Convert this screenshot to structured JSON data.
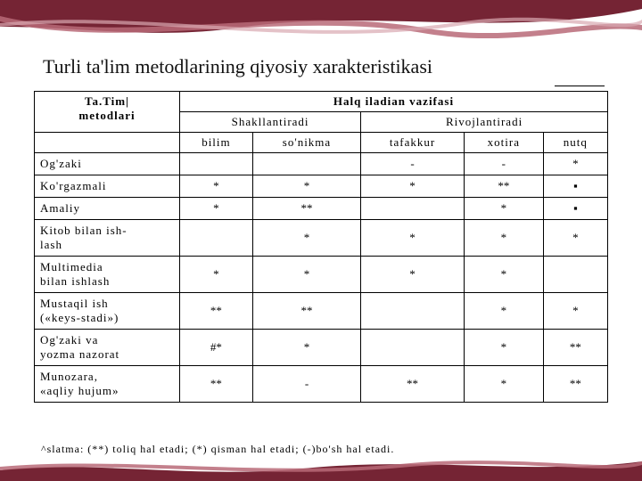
{
  "theme": {
    "ribbon_main": "#752434",
    "ribbon_light": "#b86a78",
    "ribbon_highlight": "#d9a8b0",
    "background": "#ffffff",
    "text": "#000000"
  },
  "title": "Turli ta'lim metodlarining qiyosiy xarakteristikasi",
  "table": {
    "col0_header1": "Ta.Tim|",
    "col0_header2": "metodlari",
    "top_header": "Halq iladian vazifasi",
    "group1": "Shakllantiradi",
    "group2": "Rivojlantiradi",
    "sub1": "bilim",
    "sub2": "so'nikma",
    "sub3": "tafakkur",
    "sub4": "xotira",
    "sub5": "nutq",
    "rows": [
      {
        "label": "Og'zaki",
        "c": [
          "",
          "",
          "-",
          "-",
          "*"
        ]
      },
      {
        "label": "Ko'rgazmali",
        "c": [
          "*",
          "*",
          "*",
          "**",
          "▪"
        ]
      },
      {
        "label": "Amaliy",
        "c": [
          "*",
          "**",
          "",
          "*",
          "▪"
        ]
      },
      {
        "label": "Kitob bilan ish-\nlash",
        "c": [
          "",
          "*",
          "*",
          "*",
          "*"
        ]
      },
      {
        "label": "Multimedia\nbilan ishlash",
        "c": [
          "*",
          "*",
          "*",
          "*",
          ""
        ]
      },
      {
        "label": "Mustaqil      ish\n(«keys-stadi»)",
        "c": [
          "**",
          "**",
          "",
          "*",
          "*"
        ]
      },
      {
        "label": "Og'zaki      va\nyozma nazorat",
        "c": [
          "#*",
          "*",
          "",
          "*",
          "**"
        ]
      },
      {
        "label": "Munozara,\n«aqliy hujum»",
        "c": [
          "**",
          "-",
          "**",
          "*",
          "**"
        ]
      }
    ]
  },
  "footnote": "^slatma:  (**) toliq hal etadi;  (*) qisman hal etadi;  (-)bo'sh hal etadi."
}
